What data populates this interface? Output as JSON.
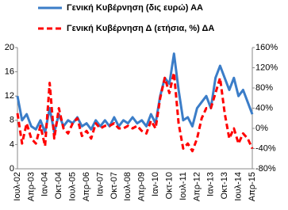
{
  "chart_data": {
    "type": "line",
    "legend": "top",
    "categories": [
      "Ιουλ-02",
      null,
      null,
      "Απρ-03",
      null,
      null,
      "Ιαν-04",
      null,
      null,
      "Οκτ-04",
      null,
      null,
      "Ιουλ-05",
      null,
      null,
      "Απρ-06",
      null,
      null,
      "Ιαν-07",
      null,
      null,
      "Οκτ-07",
      null,
      null,
      "Ιουλ-08",
      null,
      null,
      "Απρ-09",
      null,
      null,
      "Ιαν-10",
      null,
      null,
      "Οκτ-10",
      null,
      null,
      "Ιουλ-11",
      null,
      null,
      "Απρ-12",
      null,
      null,
      "Ιαν-13",
      null,
      null,
      "Οκτ-13",
      null,
      null,
      "Ιουλ-14",
      null,
      null,
      "Απρ-15"
    ],
    "series": [
      {
        "name": "Γενική Κυβέρνηση (δις ευρώ) ΑΑ",
        "color": "#3b7dc8",
        "values": [
          12,
          8,
          9,
          7,
          6.5,
          8,
          6,
          10,
          6,
          9,
          7,
          8,
          7.5,
          8.5,
          7,
          7.5,
          6.5,
          8,
          7,
          8,
          7,
          8.5,
          7,
          8,
          7.5,
          8.5,
          7.5,
          8,
          7,
          9,
          7.5,
          12,
          15,
          14,
          19,
          13,
          8,
          8.5,
          7,
          10,
          11,
          12,
          10,
          15,
          17,
          15,
          13,
          15,
          12,
          13,
          11,
          9
        ]
      },
      {
        "name": "Γενική Κυβέρνηση Δ (ετήσια, %) ΔΑ",
        "color": "#ff0000",
        "axis": "y2",
        "dashed": true,
        "values": [
          30,
          -30,
          10,
          -20,
          -30,
          5,
          -35,
          90,
          -20,
          40,
          0,
          -10,
          10,
          20,
          -15,
          -5,
          -20,
          10,
          0,
          5,
          5,
          10,
          0,
          0,
          5,
          0,
          5,
          -5,
          -10,
          15,
          0,
          60,
          100,
          70,
          110,
          10,
          -40,
          -30,
          -45,
          -20,
          20,
          40,
          40,
          70,
          100,
          30,
          -20,
          0,
          -30,
          -10,
          -20,
          -40
        ]
      }
    ],
    "ylim": [
      0,
      20
    ],
    "yticks": [
      0,
      4,
      8,
      12,
      16,
      20
    ],
    "y2lim": [
      -80,
      160
    ],
    "y2ticks": [
      {
        "value": -80,
        "label": "-80%"
      },
      {
        "value": -40,
        "label": "-40%"
      },
      {
        "value": 0,
        "label": "0%"
      },
      {
        "value": 40,
        "label": "40%"
      },
      {
        "value": 80,
        "label": "80%"
      },
      {
        "value": 120,
        "label": "120%"
      },
      {
        "value": 160,
        "label": "160%"
      }
    ]
  }
}
